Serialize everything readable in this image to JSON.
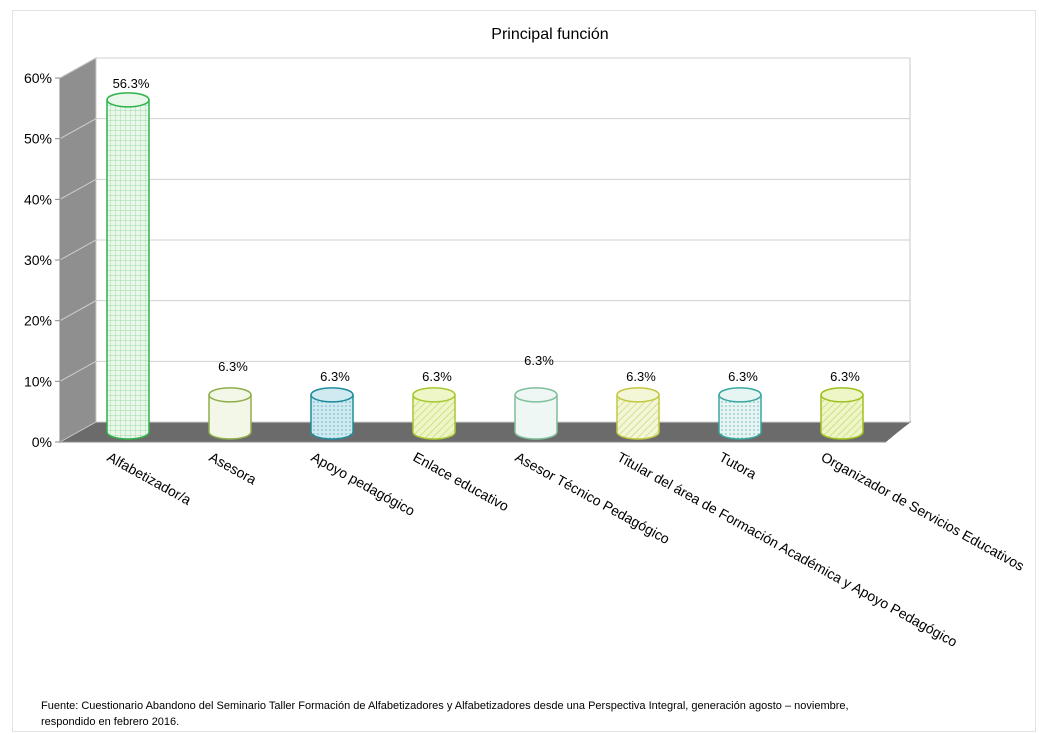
{
  "chart_data": {
    "type": "bar",
    "title": "Principal función",
    "xlabel": "",
    "ylabel": "",
    "ylim": [
      0,
      60
    ],
    "yticks": [
      "0%",
      "10%",
      "20%",
      "30%",
      "40%",
      "50%",
      "60%"
    ],
    "categories": [
      "Alfabetizador/a",
      "Asesora",
      "Apoyo pedagógico",
      "Enlace educativo",
      "Asesor Técnico Pedagógico",
      "Titular del área de Formación Académica y Apoyo Pedagógico",
      "Tutora",
      "Organizador de Servicios Educativos"
    ],
    "values": [
      56.3,
      6.3,
      6.3,
      6.3,
      6.3,
      6.3,
      6.3,
      6.3
    ],
    "data_labels": [
      "56.3%",
      "6.3%",
      "6.3%",
      "6.3%",
      "6.3%",
      "6.3%",
      "6.3%",
      "6.3%"
    ],
    "style": "3d-cylinder",
    "grid": true,
    "legend": "none",
    "bar_colors": [
      "#2db34a",
      "#8fae4a",
      "#1f8c9e",
      "#a8c830",
      "#7fbf9a",
      "#c2c840",
      "#3aa8a0",
      "#9ec020"
    ],
    "bar_fills": [
      "#eaf7ea",
      "#f3f7e8",
      "#cfeaf0",
      "#eef6c8",
      "#eef7f3",
      "#f4f6d8",
      "#e6f4f2",
      "#eef5c6"
    ],
    "source": "Fuente: Cuestionario Abandono del Seminario Taller Formación de Alfabetizadores y Alfabetizadores desde una Perspectiva Integral, generación agosto – noviembre, respondido en febrero 2016."
  }
}
